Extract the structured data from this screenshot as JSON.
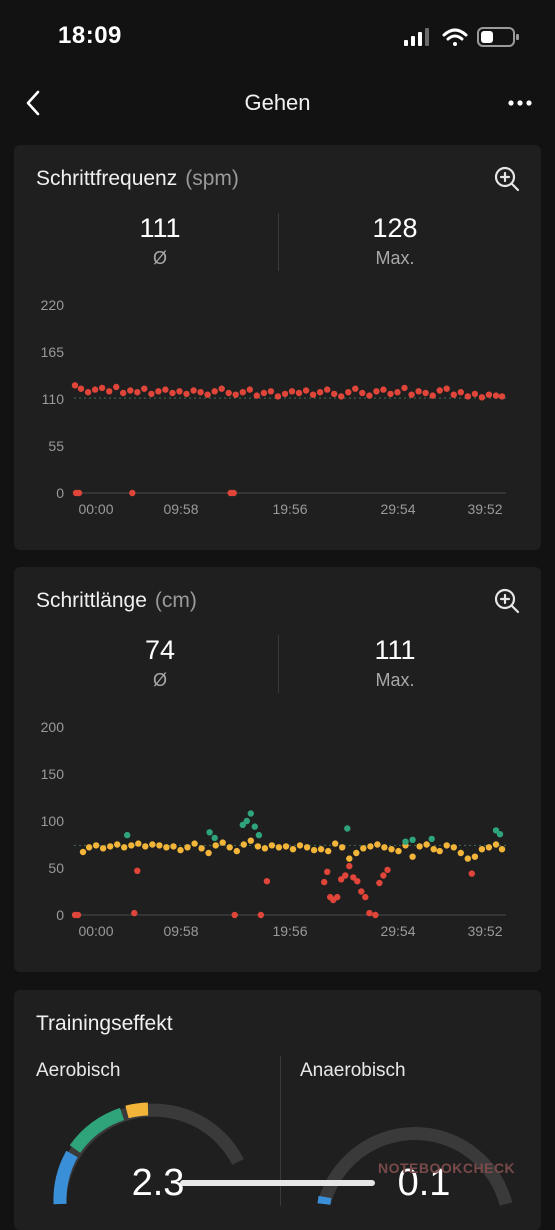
{
  "status_bar": {
    "time": "18:09"
  },
  "header": {
    "title": "Gehen"
  },
  "cadence": {
    "title": "Schrittfrequenz",
    "unit": "(spm)",
    "avg_value": "111",
    "avg_label": "Ø",
    "max_value": "128",
    "max_label": "Max."
  },
  "stride": {
    "title": "Schrittlänge",
    "unit": "(cm)",
    "avg_value": "74",
    "avg_label": "Ø",
    "max_value": "111",
    "max_label": "Max."
  },
  "training": {
    "title": "Trainingseffekt",
    "aerobic_label": "Aerobisch",
    "aerobic_value": "2.3",
    "anaerobic_label": "Anaerobisch",
    "anaerobic_value": "0.1"
  },
  "watermark": "NOTEBOOKCHECK",
  "colors": {
    "red": "#e0453a",
    "yellow": "#f2b53a",
    "green": "#2fa37a",
    "blue": "#3a8fd9"
  },
  "chart_data": [
    {
      "type": "scatter",
      "title": "Schrittfrequenz (spm)",
      "x_ticks": [
        "00:00",
        "09:58",
        "19:56",
        "29:54",
        "39:52"
      ],
      "y_ticks": [
        "0",
        "55",
        "110",
        "165",
        "220"
      ],
      "ylim": [
        0,
        220
      ],
      "xlim_minutes": [
        0,
        43
      ],
      "reference_line": 111,
      "series": [
        {
          "color": "red",
          "points": [
            [
              0.1,
              126
            ],
            [
              0.7,
              122
            ],
            [
              1.4,
              118
            ],
            [
              2.1,
              121
            ],
            [
              2.8,
              123
            ],
            [
              3.5,
              119
            ],
            [
              4.2,
              124
            ],
            [
              4.9,
              117
            ],
            [
              5.6,
              120
            ],
            [
              6.3,
              118
            ],
            [
              7,
              122
            ],
            [
              7.7,
              116
            ],
            [
              8.4,
              119
            ],
            [
              9.1,
              121
            ],
            [
              9.8,
              117
            ],
            [
              10.5,
              119
            ],
            [
              11.2,
              116
            ],
            [
              11.9,
              120
            ],
            [
              12.6,
              118
            ],
            [
              13.3,
              115
            ],
            [
              14,
              119
            ],
            [
              14.7,
              122
            ],
            [
              15.4,
              117
            ],
            [
              16.1,
              115
            ],
            [
              16.8,
              118
            ],
            [
              17.5,
              121
            ],
            [
              18.2,
              114
            ],
            [
              18.9,
              117
            ],
            [
              19.6,
              119
            ],
            [
              20.3,
              113
            ],
            [
              21,
              116
            ],
            [
              21.7,
              119
            ],
            [
              22.4,
              117
            ],
            [
              23.1,
              120
            ],
            [
              23.8,
              115
            ],
            [
              24.5,
              118
            ],
            [
              25.2,
              121
            ],
            [
              25.9,
              116
            ],
            [
              26.6,
              113
            ],
            [
              27.3,
              118
            ],
            [
              28,
              122
            ],
            [
              28.7,
              117
            ],
            [
              29.4,
              114
            ],
            [
              30.1,
              119
            ],
            [
              30.8,
              121
            ],
            [
              31.5,
              116
            ],
            [
              32.2,
              118
            ],
            [
              32.9,
              123
            ],
            [
              33.6,
              115
            ],
            [
              34.3,
              119
            ],
            [
              35,
              117
            ],
            [
              35.7,
              114
            ],
            [
              36.4,
              120
            ],
            [
              37.1,
              122
            ],
            [
              37.8,
              115
            ],
            [
              38.5,
              118
            ],
            [
              39.2,
              113
            ],
            [
              39.9,
              116
            ],
            [
              40.6,
              112
            ],
            [
              41.3,
              115
            ],
            [
              42,
              114
            ],
            [
              42.6,
              113
            ],
            [
              0.2,
              0
            ],
            [
              0.5,
              0
            ],
            [
              5.8,
              0
            ],
            [
              15.6,
              0
            ],
            [
              15.9,
              0
            ]
          ]
        }
      ]
    },
    {
      "type": "scatter",
      "title": "Schrittlänge (cm)",
      "x_ticks": [
        "00:00",
        "09:58",
        "19:56",
        "29:54",
        "39:52"
      ],
      "y_ticks": [
        "0",
        "50",
        "100",
        "150",
        "200"
      ],
      "ylim": [
        0,
        200
      ],
      "xlim_minutes": [
        0,
        43
      ],
      "reference_line": 74,
      "series": [
        {
          "color": "yellow",
          "points": [
            [
              0.9,
              67
            ],
            [
              1.5,
              72
            ],
            [
              2.2,
              74
            ],
            [
              2.9,
              71
            ],
            [
              3.6,
              73
            ],
            [
              4.3,
              75
            ],
            [
              5,
              72
            ],
            [
              5.7,
              74
            ],
            [
              6.4,
              76
            ],
            [
              7.1,
              73
            ],
            [
              7.8,
              75
            ],
            [
              8.5,
              74
            ],
            [
              9.2,
              72
            ],
            [
              9.9,
              73
            ],
            [
              10.6,
              69
            ],
            [
              11.3,
              72
            ],
            [
              12,
              76
            ],
            [
              12.7,
              71
            ],
            [
              13.4,
              66
            ],
            [
              14.1,
              74
            ],
            [
              14.8,
              77
            ],
            [
              15.5,
              72
            ],
            [
              16.2,
              68
            ],
            [
              16.9,
              75
            ],
            [
              17.6,
              79
            ],
            [
              18.3,
              73
            ],
            [
              19,
              71
            ],
            [
              19.7,
              74
            ],
            [
              20.4,
              72
            ],
            [
              21.1,
              73
            ],
            [
              21.8,
              70
            ],
            [
              22.5,
              74
            ],
            [
              23.2,
              72
            ],
            [
              23.9,
              69
            ],
            [
              24.6,
              70
            ],
            [
              25.3,
              68
            ],
            [
              26,
              76
            ],
            [
              26.7,
              72
            ],
            [
              27.4,
              60
            ],
            [
              28.1,
              66
            ],
            [
              28.8,
              71
            ],
            [
              29.5,
              73
            ],
            [
              30.2,
              75
            ],
            [
              30.9,
              72
            ],
            [
              31.6,
              70
            ],
            [
              32.3,
              68
            ],
            [
              33,
              74
            ],
            [
              33.7,
              62
            ],
            [
              34.4,
              73
            ],
            [
              35.1,
              75
            ],
            [
              35.8,
              70
            ],
            [
              36.4,
              68
            ],
            [
              37.1,
              74
            ],
            [
              37.8,
              72
            ],
            [
              38.5,
              66
            ],
            [
              39.2,
              60
            ],
            [
              39.9,
              62
            ],
            [
              40.6,
              70
            ],
            [
              41.3,
              72
            ],
            [
              42,
              75
            ],
            [
              42.6,
              70
            ]
          ]
        },
        {
          "color": "green",
          "points": [
            [
              5.3,
              85
            ],
            [
              13.5,
              88
            ],
            [
              14,
              82
            ],
            [
              16.8,
              96
            ],
            [
              17.2,
              100
            ],
            [
              17.6,
              108
            ],
            [
              18,
              94
            ],
            [
              18.4,
              85
            ],
            [
              27.2,
              92
            ],
            [
              33,
              78
            ],
            [
              33.7,
              80
            ],
            [
              35.6,
              81
            ],
            [
              42,
              90
            ],
            [
              42.4,
              86
            ]
          ]
        },
        {
          "color": "red",
          "points": [
            [
              0.1,
              0
            ],
            [
              0.4,
              0
            ],
            [
              6,
              2
            ],
            [
              6.3,
              47
            ],
            [
              16,
              0
            ],
            [
              18.6,
              0
            ],
            [
              19.2,
              36
            ],
            [
              24.9,
              35
            ],
            [
              25.2,
              46
            ],
            [
              25.5,
              19
            ],
            [
              25.8,
              16
            ],
            [
              26.2,
              19
            ],
            [
              26.6,
              38
            ],
            [
              27,
              42
            ],
            [
              27.4,
              52
            ],
            [
              27.8,
              40
            ],
            [
              28.2,
              36
            ],
            [
              28.6,
              25
            ],
            [
              29,
              19
            ],
            [
              29.4,
              2
            ],
            [
              30,
              0
            ],
            [
              30.4,
              34
            ],
            [
              30.8,
              42
            ],
            [
              31.2,
              48
            ],
            [
              39.6,
              44
            ]
          ]
        }
      ]
    }
  ]
}
